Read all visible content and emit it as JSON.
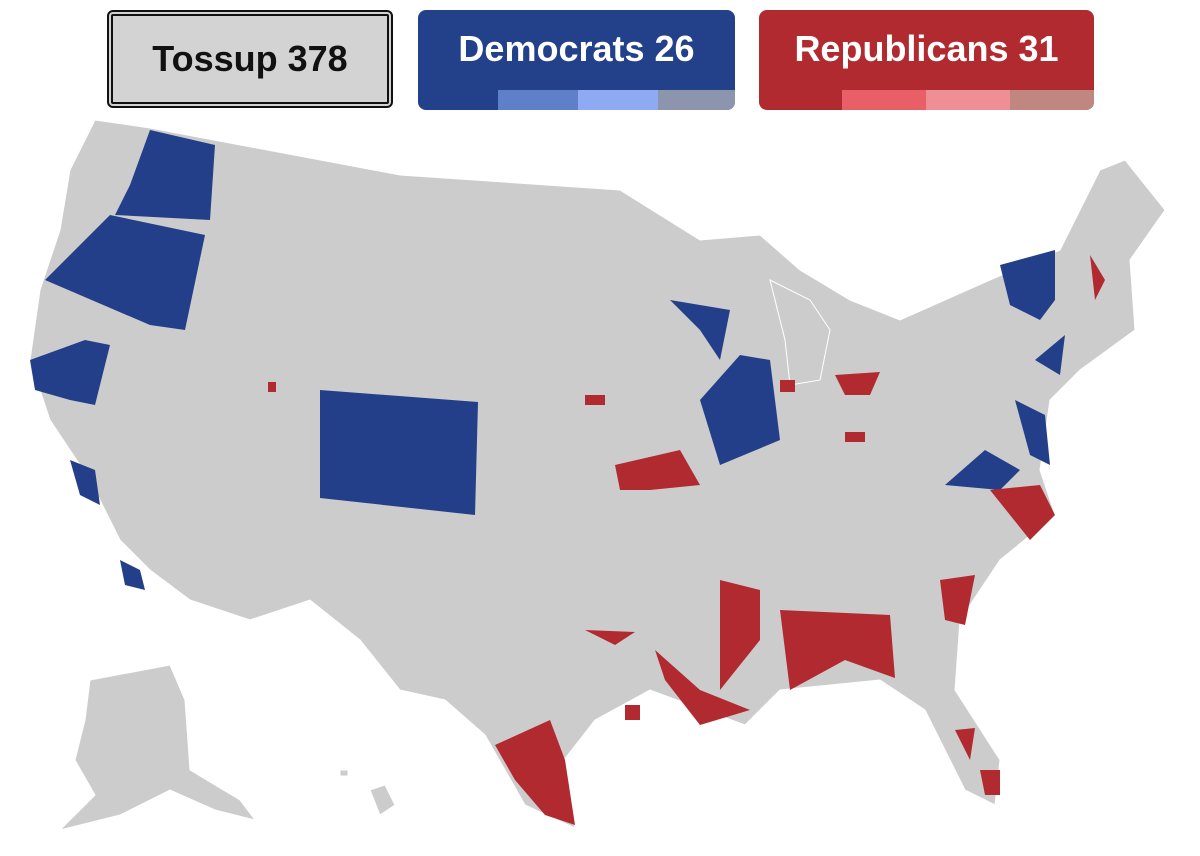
{
  "header": {
    "tossup": {
      "label": "Tossup",
      "count": 378
    },
    "democrats": {
      "label": "Democrats",
      "count": 26
    },
    "republicans": {
      "label": "Republicans",
      "count": 31
    }
  }
}
